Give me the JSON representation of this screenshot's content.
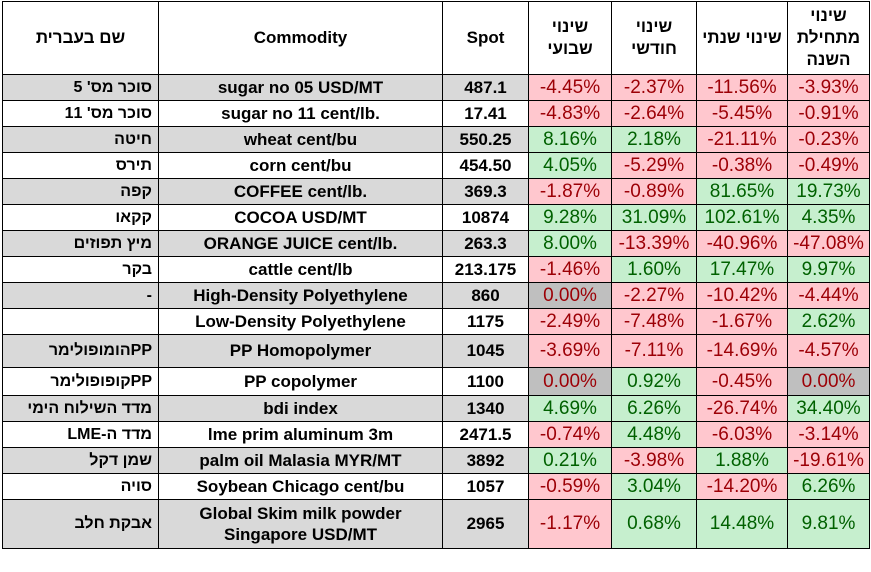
{
  "headers": {
    "hebrew_name": "שם בעברית",
    "commodity": "Commodity",
    "spot": "Spot",
    "weekly": "שינוי שבועי",
    "monthly": "שינוי חודשי",
    "yearly": "שינוי שנתי",
    "ytd": "שינוי מתחילת השנה"
  },
  "rows": [
    {
      "heb": "סוכר מס' 5",
      "commodity": "sugar no 05 USD/MT",
      "spot": "487.1",
      "weekly": "-4.45%",
      "monthly": "-2.37%",
      "yearly": "-11.56%",
      "ytd": "-3.93%"
    },
    {
      "heb": "סוכר מס' 11",
      "commodity": "sugar no 11 cent/lb.",
      "spot": "17.41",
      "weekly": "-4.83%",
      "monthly": "-2.64%",
      "yearly": "-5.45%",
      "ytd": "-0.91%"
    },
    {
      "heb": "חיטה",
      "commodity": "wheat cent/bu",
      "spot": "550.25",
      "weekly": "8.16%",
      "monthly": "2.18%",
      "yearly": "-21.11%",
      "ytd": "-0.23%"
    },
    {
      "heb": "תירס",
      "commodity": "corn cent/bu",
      "spot": "454.50",
      "weekly": "4.05%",
      "monthly": "-5.29%",
      "yearly": "-0.38%",
      "ytd": "-0.49%"
    },
    {
      "heb": "קפה",
      "commodity": "COFFEE cent/lb.",
      "spot": "369.3",
      "weekly": "-1.87%",
      "monthly": "-0.89%",
      "yearly": "81.65%",
      "ytd": "19.73%"
    },
    {
      "heb": "קקאו",
      "commodity": "COCOA USD/MT",
      "spot": "10874",
      "weekly": "9.28%",
      "monthly": "31.09%",
      "yearly": "102.61%",
      "ytd": "4.35%"
    },
    {
      "heb": "מיץ תפוזים",
      "commodity": "ORANGE JUICE cent/lb.",
      "spot": "263.3",
      "weekly": "8.00%",
      "monthly": "-13.39%",
      "yearly": "-40.96%",
      "ytd": "-47.08%"
    },
    {
      "heb": "בקר",
      "commodity": "cattle cent/lb",
      "spot": "213.175",
      "weekly": "-1.46%",
      "monthly": "1.60%",
      "yearly": "17.47%",
      "ytd": "9.97%"
    },
    {
      "heb": "-",
      "commodity": "High-Density Polyethylene",
      "spot": "860",
      "weekly": "0.00%",
      "monthly": "-2.27%",
      "yearly": "-10.42%",
      "ytd": "-4.44%"
    },
    {
      "heb": "",
      "commodity": "Low-Density Polyethylene",
      "spot": "1175",
      "weekly": "-2.49%",
      "monthly": "-7.48%",
      "yearly": "-1.67%",
      "ytd": "2.62%"
    },
    {
      "heb": "PPהומופולימר",
      "commodity": "PP Homopolymer",
      "spot": "1045",
      "weekly": "-3.69%",
      "monthly": "-7.11%",
      "yearly": "-14.69%",
      "ytd": "-4.57%"
    },
    {
      "heb": "PPקופופולימר",
      "commodity": "PP copolymer",
      "spot": "1100",
      "weekly": "0.00%",
      "monthly": "0.92%",
      "yearly": "-0.45%",
      "ytd": "0.00%"
    },
    {
      "heb": "מדד השילוח הימי",
      "commodity": "bdi index",
      "spot": "1340",
      "weekly": "4.69%",
      "monthly": "6.26%",
      "yearly": "-26.74%",
      "ytd": "34.40%"
    },
    {
      "heb": "מדד ה-LME",
      "commodity": "lme prim aluminum 3m",
      "spot": "2471.5",
      "weekly": "-0.74%",
      "monthly": "4.48%",
      "yearly": "-6.03%",
      "ytd": "-3.14%"
    },
    {
      "heb": "שמן דקל",
      "commodity": "palm oil Malasia MYR/MT",
      "spot": "3892",
      "weekly": "0.21%",
      "monthly": "-3.98%",
      "yearly": "1.88%",
      "ytd": "-19.61%"
    },
    {
      "heb": "סויה",
      "commodity": "Soybean Chicago cent/bu",
      "spot": "1057",
      "weekly": "-0.59%",
      "monthly": "3.04%",
      "yearly": "-14.20%",
      "ytd": "6.26%"
    },
    {
      "heb": "אבקת חלב",
      "commodity_line1": "Global Skim milk powder",
      "commodity_line2": "Singapore USD/MT",
      "spot": "2965",
      "weekly": "-1.17%",
      "monthly": "0.68%",
      "yearly": "14.48%",
      "ytd": "9.81%"
    }
  ]
}
